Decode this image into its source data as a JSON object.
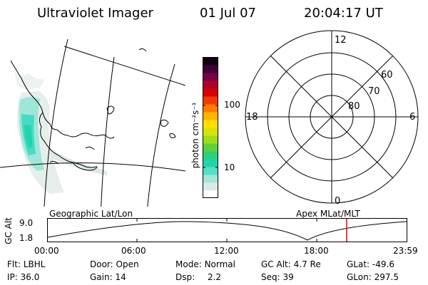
{
  "header": {
    "title": "Ultraviolet Imager",
    "date": "01 Jul 07",
    "time": "20:04:17 UT"
  },
  "colorbar": {
    "unit_label": "photon cm⁻²s⁻¹",
    "ticks": [
      "100",
      "10"
    ],
    "colors": [
      "#ffffff",
      "#dce9e6",
      "#a6e3d8",
      "#52e0c8",
      "#22d4ae",
      "#2ad07a",
      "#5cd23a",
      "#9fdc1c",
      "#d6e40a",
      "#ffe000",
      "#ffb400",
      "#ff7c00",
      "#f03a00",
      "#d80000",
      "#b0002a",
      "#7a0044",
      "#40003a",
      "#100010"
    ]
  },
  "polar_plot": {
    "labels": {
      "top": "12",
      "bottom": "0",
      "left": "18",
      "right": "6"
    },
    "rings": [
      "60",
      "70",
      "80"
    ]
  },
  "map": {
    "label": "Geographic Lat/Lon"
  },
  "timeline": {
    "ylabel": "GC Alt",
    "ytick_high": "9.0",
    "ytick_low": "1.8",
    "right_label": "Apex MLat/MLT",
    "xticks": [
      "00:00",
      "06:00",
      "12:00",
      "18:00",
      "23:59"
    ],
    "current_marker_color": "#e00000"
  },
  "footer": {
    "row1": [
      {
        "label": "Flt:",
        "value": "LBHL"
      },
      {
        "label": "Door:",
        "value": "Open"
      },
      {
        "label": "Mode:",
        "value": "Normal"
      },
      {
        "label": "GC Alt:",
        "value": "4.7 Re"
      },
      {
        "label": "GLat:",
        "value": "-49.6"
      }
    ],
    "row2": [
      {
        "label": "IP:",
        "value": "36.0"
      },
      {
        "label": "Gain:",
        "value": "14"
      },
      {
        "label": "Dsp:",
        "value": "2.2"
      },
      {
        "label": "Seq:",
        "value": "39"
      },
      {
        "label": "GLon:",
        "value": "297.5"
      }
    ]
  }
}
